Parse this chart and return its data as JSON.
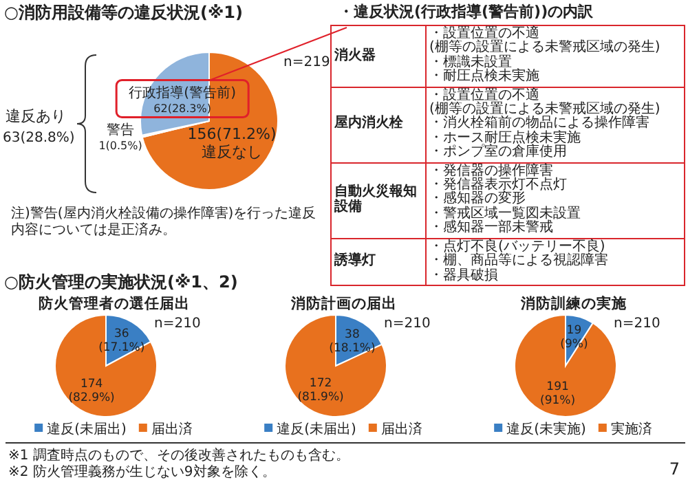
{
  "chart_data": [
    {
      "type": "pie",
      "title": "○消防用設備等の違反状況(※1)",
      "categories": [
        "違反なし",
        "警告",
        "行政指導(警告前)"
      ],
      "values": [
        156,
        1,
        62
      ],
      "colors": [
        "#e8711e",
        "#f2f2f2",
        "#8fb4dc"
      ],
      "value_labels": [
        "156(71.2%)",
        "1(0.5%)",
        "62(28.3%)"
      ],
      "annotations": [
        "n=219",
        "違反あり",
        "63(28.8%)",
        "注)警告(屋内消火栓設備の操作障害)を行った違反内容については是正済み。"
      ]
    },
    {
      "type": "other",
      "title": "・違反状況(行政指導(警告前))の内訳",
      "y_categories": [
        "消火器",
        "屋内消火栓",
        "自動火災報知設備",
        "誘導灯"
      ],
      "cell_labels": [
        [
          "・設置位置の不適",
          "(棚等の設置による未警戒区域の発生)",
          "・標識未設置",
          "・耐圧点検未実施"
        ],
        [
          "・設置位置の不適",
          "(棚等の設置による未警戒区域の発生)",
          "・消火栓箱前の物品による操作障害",
          "・ホース耐圧点検未実施",
          "・ポンプ室の倉庫使用"
        ],
        [
          "・発信器の操作障害",
          "・発信器表示灯不点灯",
          "・感知器の変形",
          "・警戒区域一覧図未設置",
          "・感知器一部未警戒"
        ],
        [
          "・点灯不良(バッテリー不良)",
          "・棚、商品等による視認障害",
          "・器具破損"
        ]
      ]
    },
    {
      "type": "pie",
      "title": "○防火管理の実施状況(※1、2)",
      "subtitle": "防火管理者の選任届出",
      "categories": [
        "違反(未届出)",
        "届出済"
      ],
      "values": [
        36,
        174
      ],
      "colors": [
        "#3a7fc4",
        "#e8711e"
      ],
      "value_labels": [
        "36\n(17.1%)",
        "174\n(82.9%)"
      ],
      "legend": "bottom",
      "annotations": [
        "n=210"
      ]
    },
    {
      "type": "pie",
      "subtitle": "消防計画の届出",
      "categories": [
        "違反(未届出)",
        "届出済"
      ],
      "values": [
        38,
        172
      ],
      "colors": [
        "#3a7fc4",
        "#e8711e"
      ],
      "value_labels": [
        "38\n(18.1%)",
        "172\n(81.9%)"
      ],
      "legend": "bottom",
      "annotations": [
        "n=210"
      ]
    },
    {
      "type": "pie",
      "subtitle": "消防訓練の実施",
      "categories": [
        "違反(未実施)",
        "実施済"
      ],
      "values": [
        19,
        191
      ],
      "colors": [
        "#3a7fc4",
        "#e8711e"
      ],
      "value_labels": [
        "19\n(9%)",
        "191\n(91%)"
      ],
      "legend": "bottom",
      "annotations": [
        "n=210",
        "※1 調査時点のもので、その後改善されたものも含む。",
        "※2 防火管理義務が生じない9対象を除く。",
        "7"
      ]
    }
  ]
}
